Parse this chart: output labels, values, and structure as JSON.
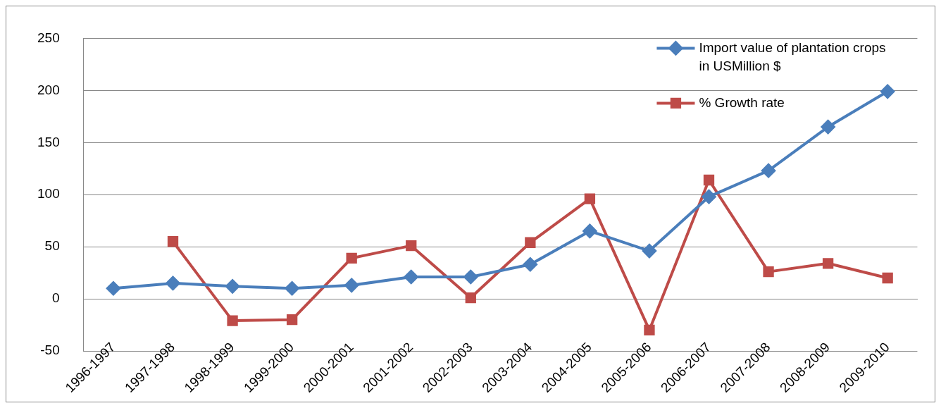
{
  "chart_data": {
    "type": "line",
    "categories": [
      "1996-1997",
      "1997-1998",
      "1998-1999",
      "1999-2000",
      "2000-2001",
      "2001-2002",
      "2002-2003",
      "2003-2004",
      "2004-2005",
      "2005-2006",
      "2006-2007",
      "2007-2008",
      "2008-2009",
      "2009-2010"
    ],
    "series": [
      {
        "name": "Import value of plantation crops in USMillion $",
        "color": "#4a7ebb",
        "marker": "diamond",
        "values": [
          10,
          15,
          12,
          10,
          13,
          21,
          21,
          33,
          65,
          46,
          98,
          123,
          165,
          199
        ]
      },
      {
        "name": "% Growth rate",
        "color": "#be4b48",
        "marker": "square",
        "values": [
          null,
          55,
          -21,
          -20,
          39,
          51,
          1,
          54,
          96,
          -30,
          114,
          26,
          34,
          20
        ]
      }
    ],
    "ylim": [
      -50,
      250
    ],
    "yticks": [
      -50,
      0,
      50,
      100,
      150,
      200,
      250
    ],
    "grid": "y",
    "legend": "top right",
    "line_style": "solid"
  }
}
